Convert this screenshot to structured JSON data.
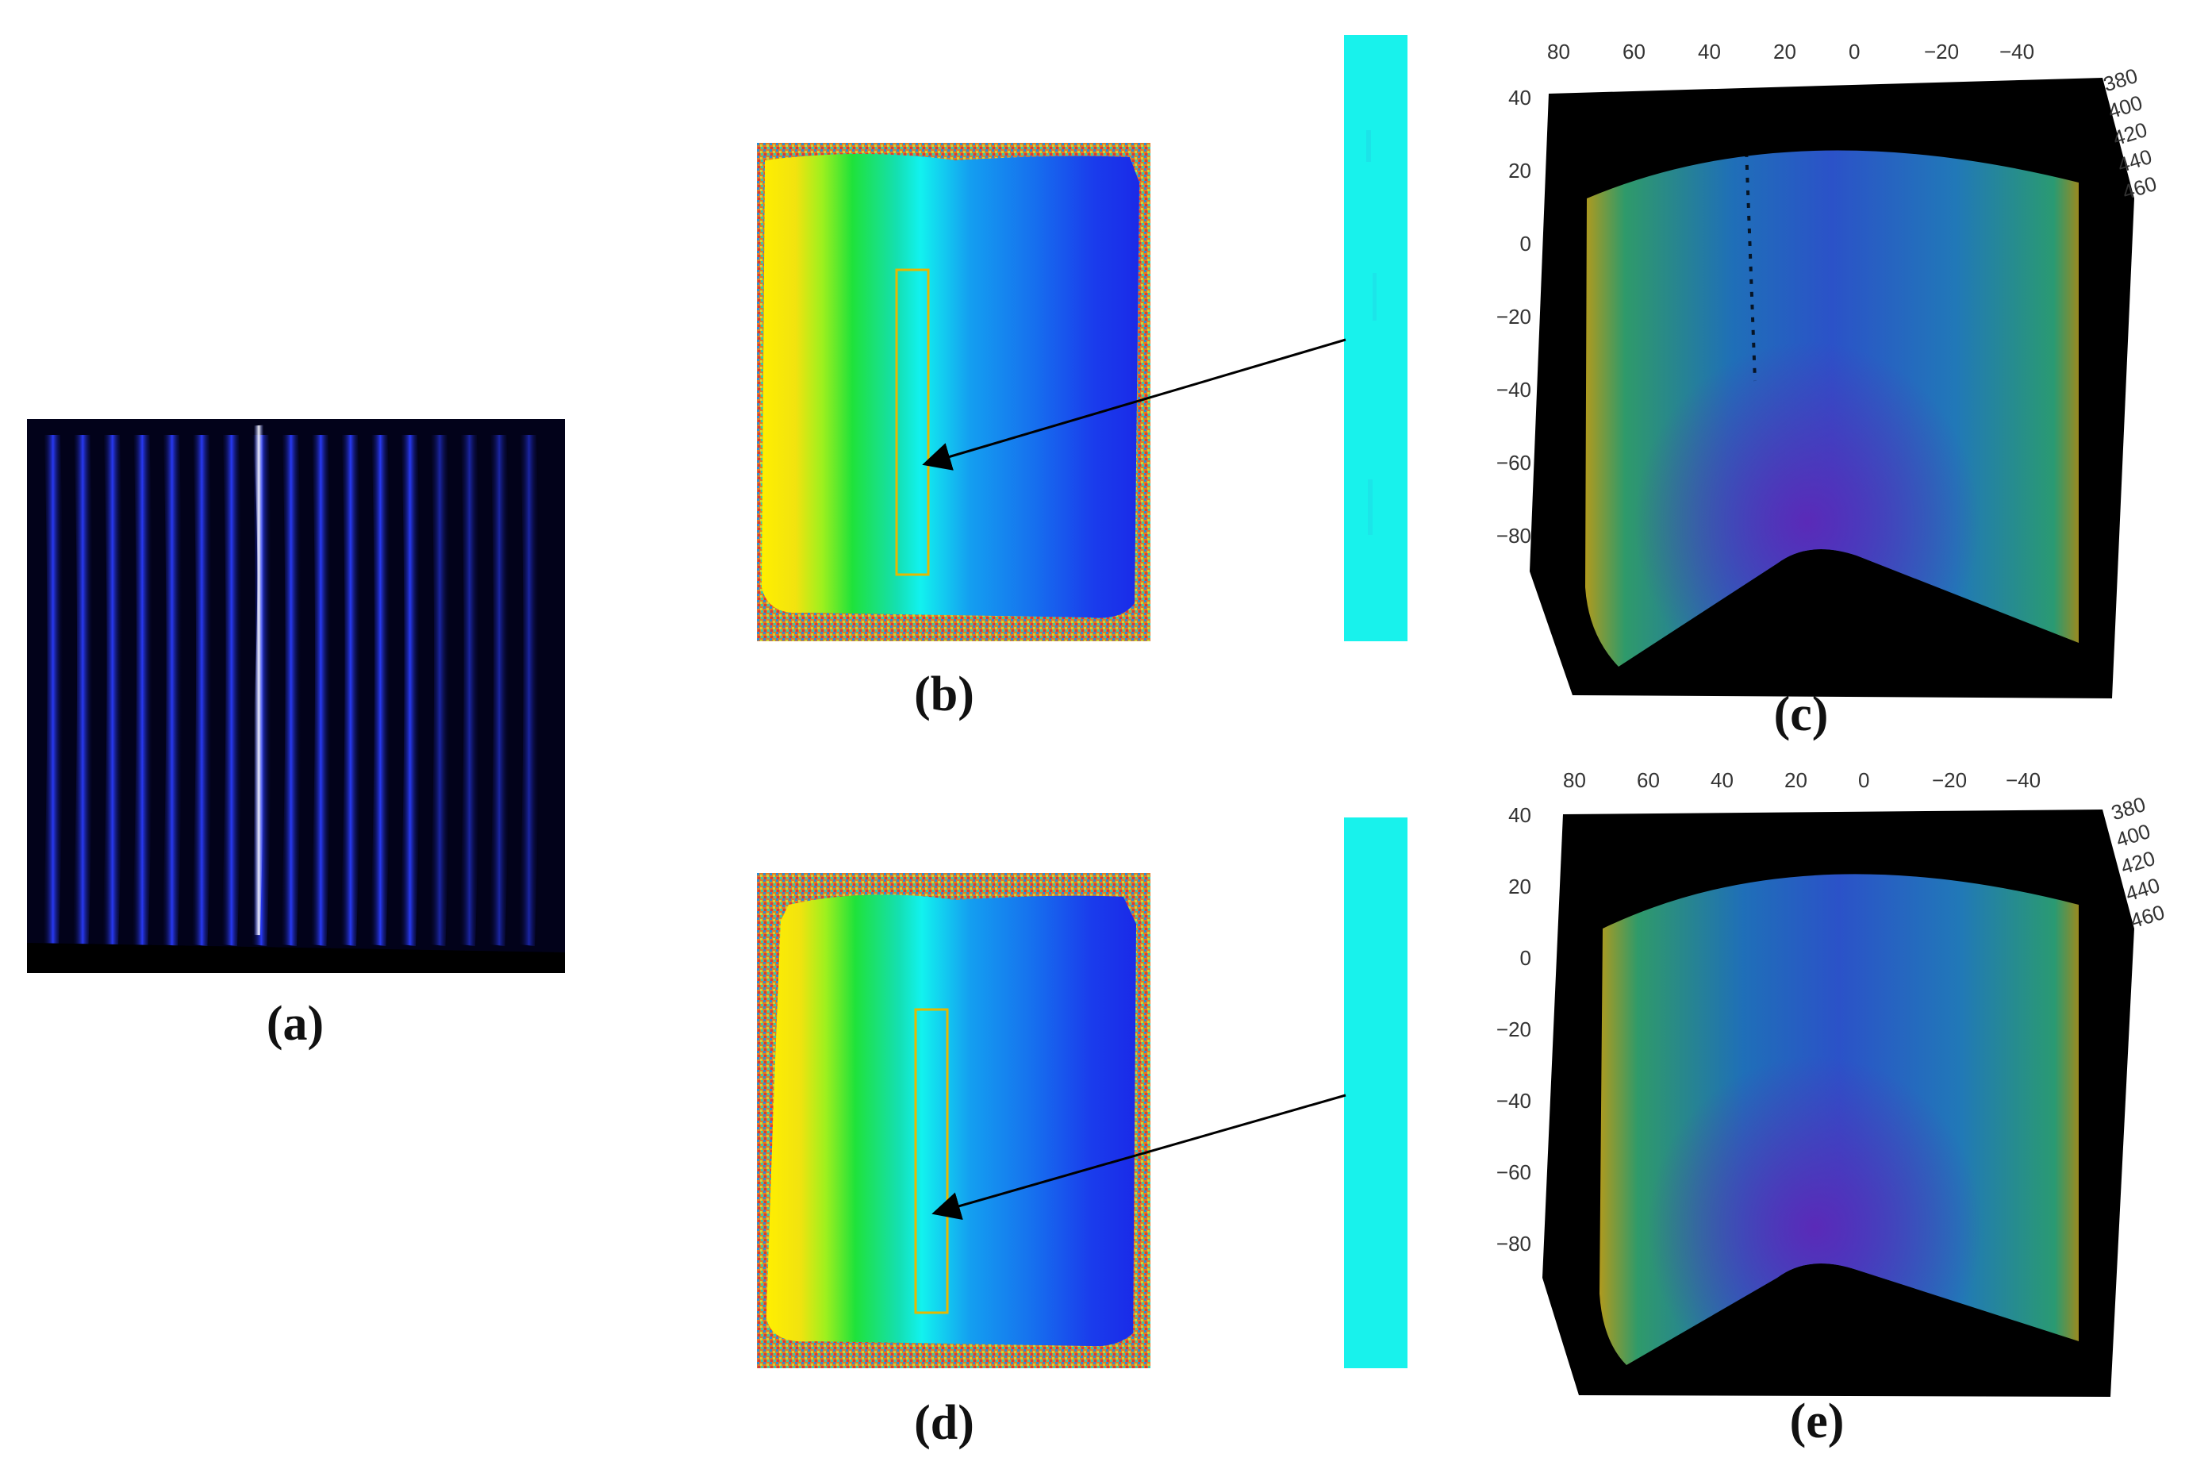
{
  "captions": {
    "a": "(a)",
    "b": "(b)",
    "c": "(c)",
    "d": "(d)",
    "e": "(e)"
  },
  "colors": {
    "fringe_blue": "#1e2cff",
    "background_dark": "#02021a",
    "roi_box": "#e6b800",
    "strip_cyan": "#18f2ec"
  },
  "fringe_count": 17,
  "plot_axes": {
    "top_ticks": [
      "80",
      "60",
      "40",
      "20",
      "0",
      "−20",
      "−40"
    ],
    "left_ticks": [
      "40",
      "20",
      "0",
      "−20",
      "−40",
      "−60",
      "−80"
    ],
    "depth_ticks": [
      "380",
      "400",
      "420",
      "440",
      "460"
    ]
  }
}
